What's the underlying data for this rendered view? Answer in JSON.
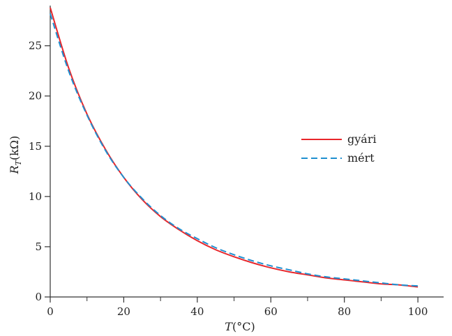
{
  "chart_data": {
    "type": "line",
    "xlabel": "T",
    "xlabel_unit": "(°C)",
    "ylabel": "R",
    "ylabel_sub": "T",
    "ylabel_unit": "(kΩ)",
    "xlim": [
      0,
      107
    ],
    "ylim": [
      0,
      29
    ],
    "xticks": [
      0,
      20,
      40,
      60,
      80,
      100
    ],
    "xminor_ticks": [
      10,
      30,
      50,
      70,
      90
    ],
    "yticks": [
      0,
      5,
      10,
      15,
      20,
      25
    ],
    "grid": false,
    "legend_position": "right",
    "series": [
      {
        "name": "gyári",
        "style": "solid",
        "color": "#e8262b",
        "x": [
          0,
          5,
          10,
          15,
          20,
          25,
          30,
          35,
          40,
          45,
          50,
          55,
          60,
          65,
          70,
          75,
          80,
          85,
          90,
          95,
          100
        ],
        "y": [
          28.8,
          22.8,
          18.2,
          14.7,
          11.9,
          9.7,
          8.0,
          6.7,
          5.6,
          4.7,
          4.0,
          3.4,
          2.9,
          2.5,
          2.2,
          1.9,
          1.7,
          1.5,
          1.3,
          1.2,
          1.0
        ]
      },
      {
        "name": "mért",
        "style": "dashed",
        "color": "#1f8fd0",
        "x": [
          0,
          5,
          10,
          15,
          20,
          25,
          30,
          35,
          40,
          45,
          50,
          55,
          60,
          65,
          70,
          75,
          80,
          85,
          90,
          95,
          100
        ],
        "y": [
          28.2,
          22.5,
          18.1,
          14.6,
          11.9,
          9.8,
          8.1,
          6.8,
          5.8,
          4.9,
          4.2,
          3.6,
          3.1,
          2.7,
          2.3,
          2.0,
          1.8,
          1.6,
          1.4,
          1.2,
          1.1
        ]
      }
    ]
  }
}
